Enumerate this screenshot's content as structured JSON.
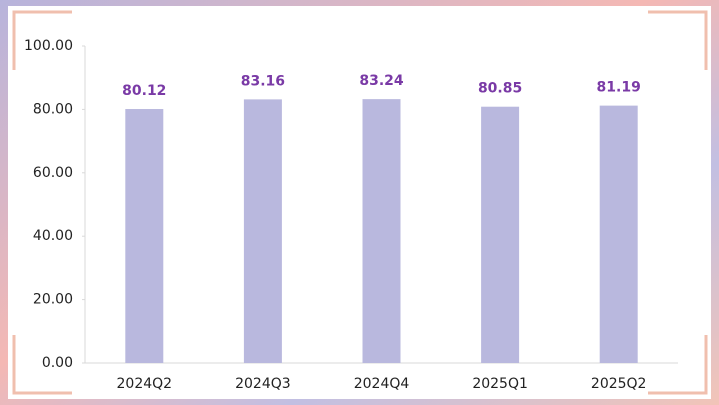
{
  "chart_data": {
    "type": "bar",
    "categories": [
      "2024Q2",
      "2024Q3",
      "2024Q4",
      "2025Q1",
      "2025Q2"
    ],
    "values": [
      80.12,
      83.16,
      83.24,
      80.85,
      81.19
    ],
    "color": "#b9b8de",
    "label_color": "#7a3aa6",
    "ylim": [
      0,
      100
    ],
    "yticks": [
      {
        "value": 0,
        "label": "0.00"
      },
      {
        "value": 20,
        "label": "20.00"
      },
      {
        "value": 40,
        "label": "40.00"
      },
      {
        "value": 60,
        "label": "60.00"
      },
      {
        "value": 80,
        "label": "80.00"
      },
      {
        "value": 100,
        "label": "100.00"
      }
    ]
  }
}
